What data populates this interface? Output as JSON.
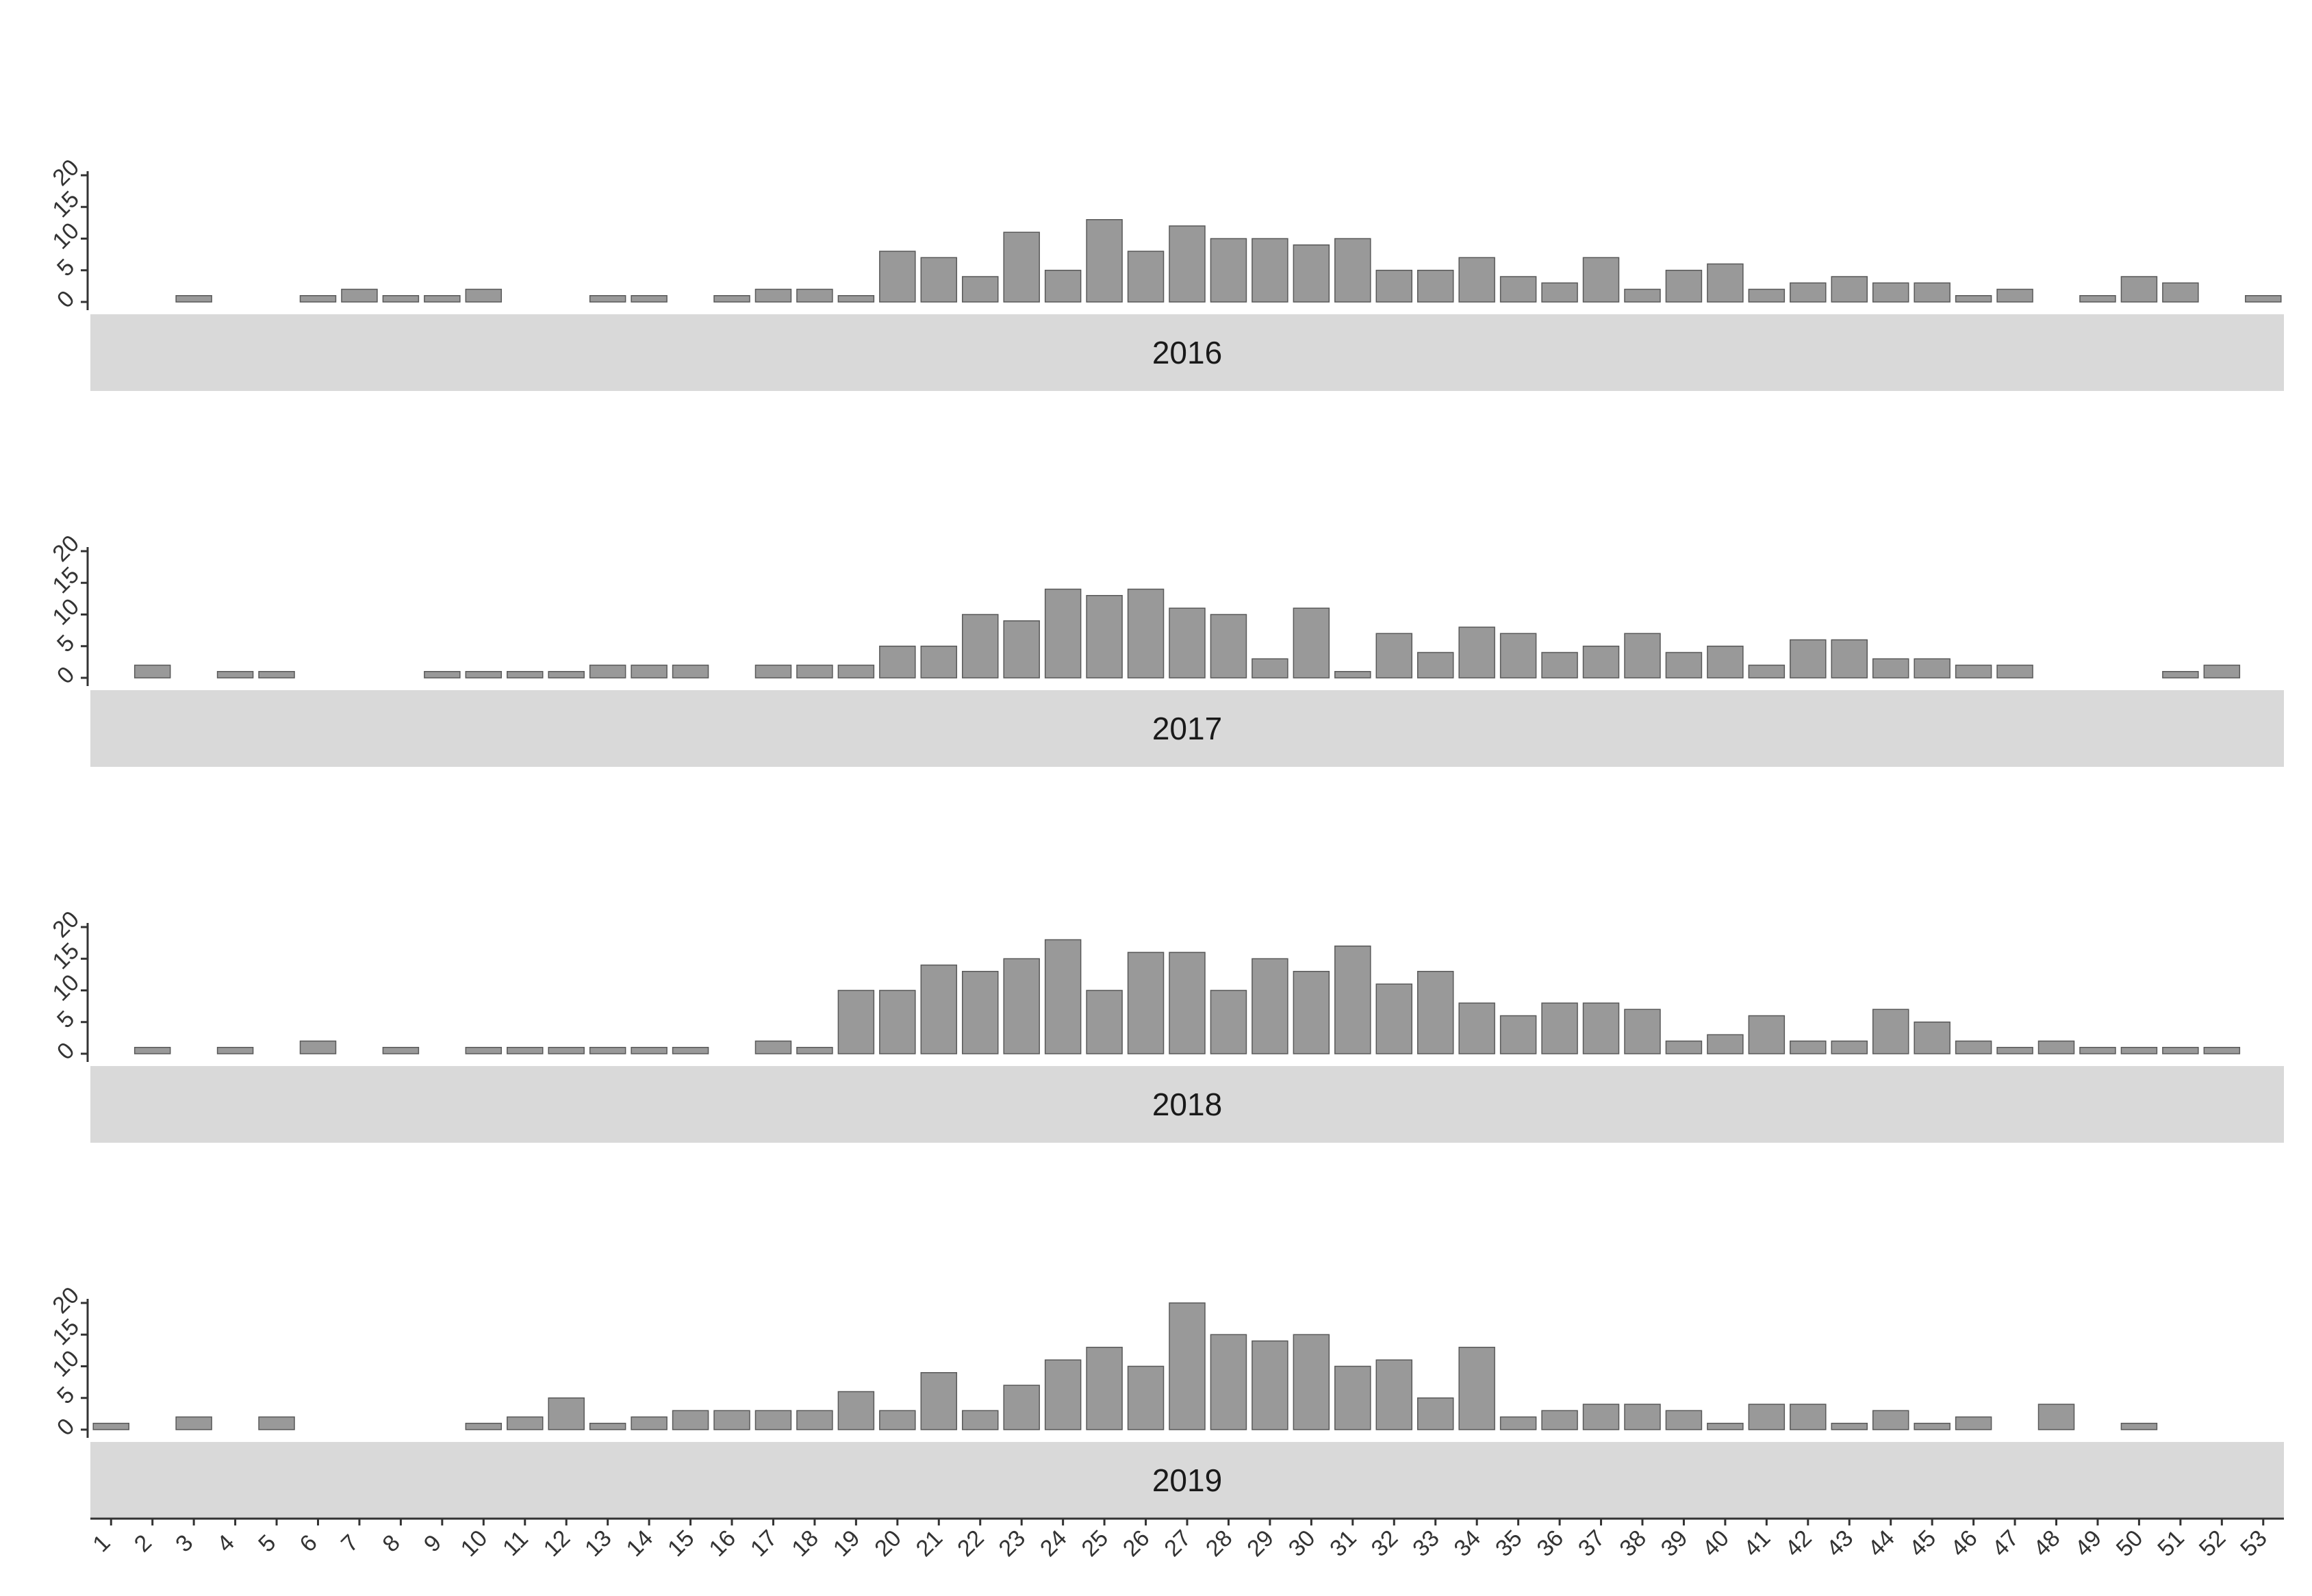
{
  "chart_data": {
    "type": "bar",
    "layout": "faceted",
    "x": [
      1,
      2,
      3,
      4,
      5,
      6,
      7,
      8,
      9,
      10,
      11,
      12,
      13,
      14,
      15,
      16,
      17,
      18,
      19,
      20,
      21,
      22,
      23,
      24,
      25,
      26,
      27,
      28,
      29,
      30,
      31,
      32,
      33,
      34,
      35,
      36,
      37,
      38,
      39,
      40,
      41,
      42,
      43,
      44,
      45,
      46,
      47,
      48,
      49,
      50,
      51,
      52,
      53
    ],
    "xlabel": "",
    "ylabel": "",
    "ylim": [
      0,
      20
    ],
    "yticks": [
      0,
      5,
      10,
      15,
      20
    ],
    "bar_color": "#999999",
    "bar_edge_color": "#595959",
    "strip_color": "#d9d9d9",
    "panels": [
      {
        "strip_label": "2016",
        "values": [
          0,
          0,
          1,
          0,
          0,
          1,
          2,
          1,
          1,
          2,
          0,
          0,
          1,
          1,
          0,
          1,
          2,
          2,
          1,
          8,
          7,
          4,
          11,
          5,
          13,
          8,
          12,
          10,
          10,
          9,
          10,
          5,
          5,
          7,
          4,
          3,
          7,
          2,
          5,
          6,
          2,
          3,
          4,
          3,
          3,
          1,
          2,
          0,
          1,
          4,
          3,
          0,
          1
        ]
      },
      {
        "strip_label": "2017",
        "values": [
          0,
          2,
          0,
          1,
          1,
          0,
          0,
          0,
          1,
          1,
          1,
          1,
          2,
          2,
          2,
          0,
          2,
          2,
          2,
          5,
          5,
          10,
          9,
          14,
          13,
          14,
          11,
          10,
          3,
          11,
          1,
          7,
          4,
          8,
          7,
          4,
          5,
          7,
          4,
          5,
          2,
          6,
          6,
          3,
          3,
          2,
          2,
          0,
          0,
          0,
          1,
          2,
          0
        ]
      },
      {
        "strip_label": "2018",
        "values": [
          0,
          1,
          0,
          1,
          0,
          2,
          0,
          1,
          0,
          1,
          1,
          1,
          1,
          1,
          1,
          0,
          2,
          1,
          10,
          10,
          14,
          13,
          15,
          18,
          10,
          16,
          16,
          10,
          15,
          13,
          17,
          11,
          13,
          8,
          6,
          8,
          8,
          7,
          2,
          3,
          6,
          2,
          2,
          7,
          5,
          2,
          1,
          2,
          1,
          1,
          1,
          1,
          0
        ]
      },
      {
        "strip_label": "2019",
        "values": [
          1,
          0,
          2,
          0,
          2,
          0,
          0,
          0,
          0,
          1,
          2,
          5,
          1,
          2,
          3,
          3,
          3,
          3,
          6,
          3,
          9,
          3,
          7,
          11,
          13,
          10,
          20,
          15,
          14,
          15,
          10,
          11,
          5,
          13,
          2,
          3,
          4,
          4,
          3,
          1,
          4,
          4,
          1,
          3,
          1,
          2,
          0,
          4,
          0,
          1,
          0,
          0,
          0
        ]
      }
    ]
  }
}
